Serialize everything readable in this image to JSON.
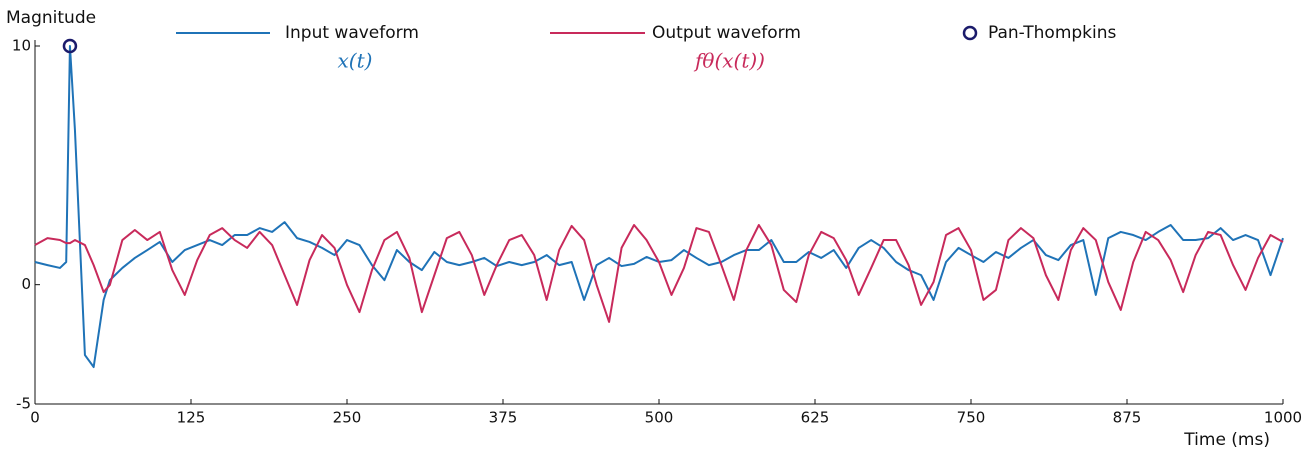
{
  "chart_data": {
    "type": "line",
    "y_label": "Magnitude",
    "x_label": "Time (ms)",
    "x": [
      0,
      10,
      20,
      25,
      28,
      32,
      40,
      47,
      55,
      60,
      70,
      80,
      90,
      100,
      110,
      120,
      130,
      140,
      150,
      160,
      170,
      180,
      190,
      200,
      210,
      220,
      230,
      240,
      250,
      260,
      270,
      280,
      290,
      300,
      310,
      320,
      330,
      340,
      350,
      360,
      370,
      380,
      390,
      400,
      410,
      420,
      430,
      440,
      450,
      460,
      470,
      480,
      490,
      500,
      510,
      520,
      530,
      540,
      550,
      560,
      570,
      580,
      590,
      600,
      610,
      620,
      630,
      640,
      650,
      660,
      670,
      680,
      690,
      700,
      710,
      720,
      730,
      740,
      750,
      760,
      770,
      780,
      790,
      800,
      810,
      820,
      830,
      840,
      850,
      860,
      870,
      880,
      890,
      900,
      910,
      920,
      930,
      940,
      950,
      960,
      970,
      980,
      990,
      1000
    ],
    "series": [
      {
        "name": "Input waveform",
        "formula": "x(t)",
        "color": "#1f73b7",
        "values": [
          0.95,
          0.82,
          0.7,
          0.95,
          10,
          6.48,
          -2.95,
          -3.45,
          -0.64,
          0.19,
          0.7,
          1.12,
          1.45,
          1.79,
          0.95,
          1.45,
          1.66,
          1.87,
          1.66,
          2.08,
          2.08,
          2.37,
          2.21,
          2.62,
          1.95,
          1.79,
          1.54,
          1.24,
          1.87,
          1.66,
          0.82,
          0.19,
          1.45,
          0.95,
          0.61,
          1.37,
          0.95,
          0.82,
          0.95,
          1.12,
          0.78,
          0.95,
          0.82,
          0.95,
          1.24,
          0.82,
          0.95,
          -0.64,
          0.82,
          1.12,
          0.78,
          0.87,
          1.16,
          0.95,
          1.03,
          1.45,
          1.12,
          0.82,
          0.95,
          1.24,
          1.45,
          1.45,
          1.87,
          0.95,
          0.95,
          1.37,
          1.12,
          1.45,
          0.7,
          1.54,
          1.87,
          1.54,
          0.95,
          0.61,
          0.4,
          -0.64,
          0.95,
          1.54,
          1.24,
          0.95,
          1.37,
          1.12,
          1.54,
          1.87,
          1.24,
          1.03,
          1.66,
          1.87,
          -0.43,
          1.95,
          2.21,
          2.08,
          1.87,
          2.21,
          2.5,
          1.87,
          1.87,
          1.95,
          2.37,
          1.87,
          2.08,
          1.87,
          0.4,
          1.95
        ]
      },
      {
        "name": "Output waveform",
        "formula": "fθ(x(t))",
        "color": "#c82a5b",
        "values": [
          1.66,
          1.95,
          1.87,
          1.74,
          1.74,
          1.87,
          1.66,
          0.82,
          -0.31,
          -0.01,
          1.87,
          2.29,
          1.87,
          2.21,
          0.61,
          -0.43,
          1.03,
          2.08,
          2.37,
          1.87,
          1.54,
          2.21,
          1.66,
          0.4,
          -0.85,
          1.03,
          2.08,
          1.54,
          -0.01,
          -1.15,
          0.61,
          1.87,
          2.21,
          1.12,
          -1.15,
          0.4,
          1.95,
          2.21,
          1.24,
          -0.43,
          0.82,
          1.87,
          2.08,
          1.24,
          -0.64,
          1.45,
          2.46,
          1.87,
          -0.01,
          -1.56,
          1.54,
          2.5,
          1.87,
          0.95,
          -0.43,
          0.7,
          2.37,
          2.21,
          0.82,
          -0.64,
          1.45,
          2.5,
          1.66,
          -0.22,
          -0.73,
          1.24,
          2.21,
          1.95,
          1.03,
          -0.43,
          0.7,
          1.87,
          1.87,
          0.82,
          -0.85,
          0.11,
          2.08,
          2.37,
          1.45,
          -0.64,
          -0.22,
          1.87,
          2.37,
          1.95,
          0.4,
          -0.64,
          1.45,
          2.37,
          1.87,
          0.11,
          -1.06,
          0.95,
          2.21,
          1.87,
          1.03,
          -0.31,
          1.24,
          2.21,
          2.08,
          0.82,
          -0.22,
          1.12,
          2.08,
          1.79
        ]
      }
    ],
    "markers": {
      "name": "Pan-Thompkins",
      "color": "#1b1b6b",
      "x": [
        28
      ],
      "values": [
        10
      ]
    },
    "xlim": [
      0,
      1000
    ],
    "xticks": [
      0,
      125,
      250,
      375,
      500,
      625,
      750,
      875,
      1000
    ],
    "ylim": [
      -5,
      10
    ],
    "yticks": [
      -5,
      0,
      10
    ],
    "grid": false
  }
}
